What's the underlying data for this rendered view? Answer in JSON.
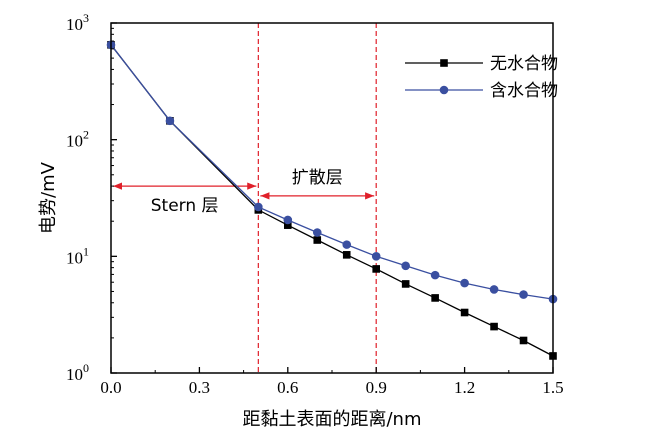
{
  "chart_data": {
    "type": "line",
    "xlabel": "距黏土表面的距离/nm",
    "ylabel": "电势/mV",
    "xlim": [
      0,
      1.5
    ],
    "ylim": [
      1,
      1000
    ],
    "yscale": "log",
    "grid": false,
    "legend_position": "top-right",
    "x_ticks": [
      "0.0",
      "0.3",
      "0.6",
      "0.9",
      "1.2",
      "1.5"
    ],
    "y_ticks": [
      {
        "base": "10",
        "exp": "0",
        "value": 1
      },
      {
        "base": "10",
        "exp": "1",
        "value": 10
      },
      {
        "base": "10",
        "exp": "2",
        "value": 100
      },
      {
        "base": "10",
        "exp": "3",
        "value": 1000
      }
    ],
    "series": [
      {
        "name": "无水合物",
        "marker": "square",
        "color": "#000000",
        "x": [
          0.0,
          0.2,
          0.5,
          0.6,
          0.7,
          0.8,
          0.9,
          1.0,
          1.1,
          1.2,
          1.3,
          1.4,
          1.5
        ],
        "y": [
          650,
          145,
          25,
          18.5,
          13.8,
          10.3,
          7.8,
          5.8,
          4.4,
          3.3,
          2.5,
          1.9,
          1.4
        ]
      },
      {
        "name": "含水合物",
        "marker": "circle",
        "color": "#3a4fa0",
        "x": [
          0.0,
          0.2,
          0.5,
          0.6,
          0.7,
          0.8,
          0.9,
          1.0,
          1.1,
          1.2,
          1.3,
          1.4,
          1.5
        ],
        "y": [
          650,
          145,
          26.5,
          20.5,
          16,
          12.6,
          10,
          8.3,
          6.9,
          5.9,
          5.2,
          4.7,
          4.3
        ]
      }
    ],
    "vlines": [
      {
        "x": 0.5,
        "color": "#e0202a",
        "style": "dashed"
      },
      {
        "x": 0.9,
        "color": "#e0202a",
        "style": "dashed"
      }
    ],
    "annotations": [
      {
        "text": "Stern 层",
        "from": 0,
        "to": 0.5,
        "at_y": 40,
        "color": "#e0202a"
      },
      {
        "text": "扩散层",
        "from": 0.5,
        "to": 0.9,
        "at_y": 33,
        "color": "#e0202a"
      }
    ]
  }
}
